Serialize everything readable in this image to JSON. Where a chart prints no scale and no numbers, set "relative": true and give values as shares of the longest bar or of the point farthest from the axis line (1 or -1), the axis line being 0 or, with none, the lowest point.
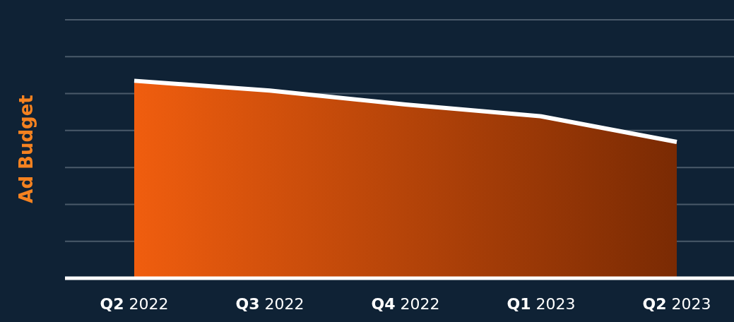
{
  "chart_data": {
    "type": "area",
    "ylabel": "Ad Budget",
    "relative": true,
    "grid": true,
    "categories": [
      "Q2 2022",
      "Q3 2022",
      "Q4 2022",
      "Q1 2023",
      "Q2 2023"
    ],
    "series": [
      {
        "color": "#ffffff",
        "values": [
          1,
          0.95,
          0.88,
          0.82,
          0.69
        ]
      }
    ]
  }
}
